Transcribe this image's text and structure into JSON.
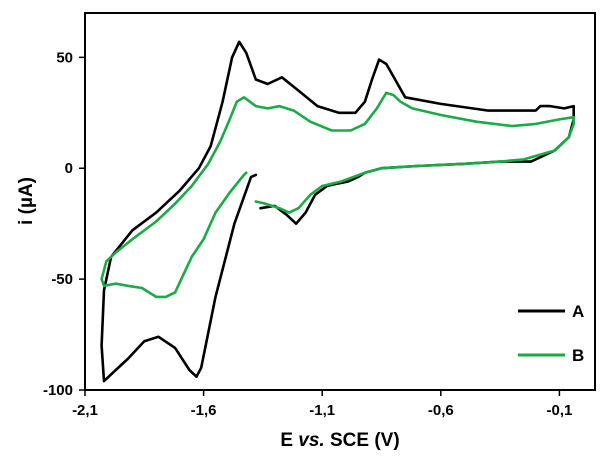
{
  "chart_data": {
    "type": "line",
    "xlabel": {
      "prefix": "E ",
      "italic": "vs.",
      "suffix": " SCE (V)"
    },
    "ylabel": "i (µA)",
    "xlim": [
      -2.1,
      0.05
    ],
    "ylim": [
      -100,
      70
    ],
    "x_ticks": [
      -2.1,
      -1.6,
      -1.1,
      -0.6,
      -0.1
    ],
    "x_tick_labels": [
      "-2,1",
      "-1,6",
      "-1,1",
      "-0,6",
      "-0,1"
    ],
    "y_ticks": [
      -100,
      -50,
      0,
      50
    ],
    "y_tick_labels": [
      "-100",
      "-50",
      "0",
      "50"
    ],
    "grid": false,
    "legend_position": "bottom-right",
    "series": [
      {
        "name": "A",
        "color": "#000000",
        "x": [
          -1.38,
          -1.4,
          -1.47,
          -1.55,
          -1.61,
          -1.63,
          -1.66,
          -1.72,
          -1.79,
          -1.85,
          -1.92,
          -1.97,
          -2.02,
          -2.03,
          -2.02,
          -1.99,
          -1.9,
          -1.8,
          -1.7,
          -1.62,
          -1.57,
          -1.52,
          -1.48,
          -1.45,
          -1.42,
          -1.38,
          -1.33,
          -1.27,
          -1.2,
          -1.12,
          -1.03,
          -0.96,
          -0.92,
          -0.89,
          -0.86,
          -0.83,
          -0.75,
          -0.6,
          -0.4,
          -0.28,
          -0.2,
          -0.18,
          -0.14,
          -0.08,
          -0.04,
          -0.04,
          -0.06,
          -0.12,
          -0.22,
          -0.27,
          -0.35,
          -0.5,
          -0.7,
          -0.85,
          -0.92,
          -0.95,
          -0.99,
          -1.04,
          -1.08,
          -1.13,
          -1.17,
          -1.21,
          -1.25,
          -1.3,
          -1.36
        ],
        "y": [
          -3,
          -4,
          -25,
          -58,
          -90,
          -94,
          -91,
          -81,
          -76,
          -78,
          -86,
          -91,
          -96,
          -80,
          -55,
          -40,
          -28,
          -20,
          -10,
          0,
          10,
          30,
          50,
          57,
          52,
          40,
          38,
          41,
          35,
          28,
          25,
          25,
          30,
          40,
          49,
          47,
          32,
          29,
          26,
          26,
          26,
          28,
          28,
          27,
          28,
          22,
          14,
          8,
          3,
          3,
          3,
          2,
          1,
          0,
          -2,
          -4,
          -6,
          -7,
          -8,
          -12,
          -20,
          -25,
          -21,
          -17,
          -18
        ]
      },
      {
        "name": "B",
        "color": "#1aab46",
        "x": [
          -1.42,
          -1.43,
          -1.49,
          -1.55,
          -1.6,
          -1.65,
          -1.69,
          -1.72,
          -1.76,
          -1.8,
          -1.86,
          -1.92,
          -1.97,
          -2.02,
          -2.03,
          -2.01,
          -1.97,
          -1.9,
          -1.8,
          -1.72,
          -1.65,
          -1.58,
          -1.53,
          -1.49,
          -1.46,
          -1.43,
          -1.38,
          -1.33,
          -1.28,
          -1.22,
          -1.15,
          -1.06,
          -0.98,
          -0.92,
          -0.87,
          -0.83,
          -0.8,
          -0.77,
          -0.72,
          -0.6,
          -0.45,
          -0.3,
          -0.2,
          -0.1,
          -0.04,
          -0.04,
          -0.06,
          -0.12,
          -0.25,
          -0.35,
          -0.5,
          -0.7,
          -0.85,
          -0.92,
          -0.97,
          -1.02,
          -1.06,
          -1.1,
          -1.15,
          -1.2,
          -1.24,
          -1.28,
          -1.34,
          -1.38
        ],
        "y": [
          -2,
          -3,
          -11,
          -20,
          -32,
          -40,
          -49,
          -56,
          -58,
          -58,
          -54,
          -53,
          -52,
          -53,
          -50,
          -42,
          -38,
          -32,
          -24,
          -16,
          -8,
          2,
          12,
          22,
          30,
          32,
          28,
          27,
          28,
          26,
          21,
          17,
          17,
          20,
          27,
          34,
          33,
          30,
          27,
          24,
          21,
          19,
          20,
          22,
          23,
          20,
          14,
          8,
          4,
          3,
          2,
          1,
          0,
          -2,
          -4,
          -6,
          -7,
          -8,
          -12,
          -18,
          -20,
          -18,
          -16,
          -15
        ]
      }
    ]
  }
}
